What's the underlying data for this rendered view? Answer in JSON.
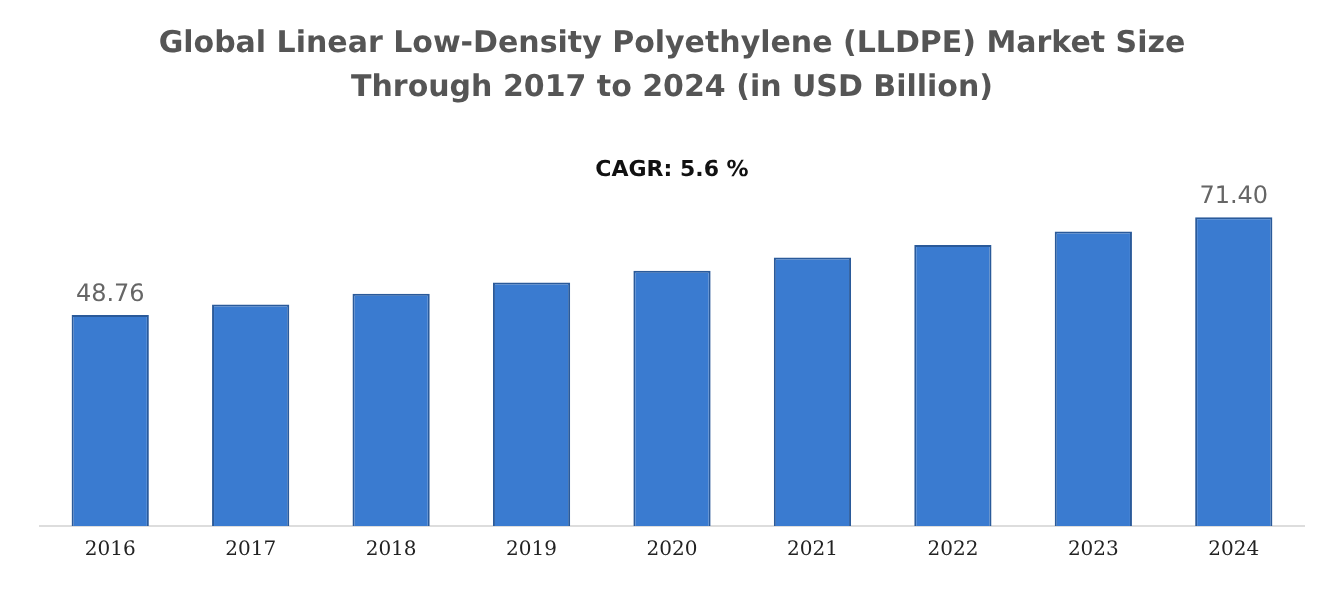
{
  "chart_data": {
    "type": "bar",
    "title": "Global Linear Low-Density Polyethylene (LLDPE) Market Size\nThrough 2017 to 2024 (in USD Billion)",
    "annotations": [
      "CAGR: 5.6 %"
    ],
    "categories": [
      "2016",
      "2017",
      "2018",
      "2019",
      "2020",
      "2021",
      "2022",
      "2023",
      "2024"
    ],
    "values": [
      48.76,
      51.2,
      53.7,
      56.3,
      59.0,
      62.1,
      65.0,
      68.1,
      71.4
    ],
    "value_labels": [
      "48.76",
      null,
      null,
      null,
      null,
      null,
      null,
      null,
      "71.40"
    ],
    "color": "#3a7bd0",
    "grid": false,
    "legend": false
  }
}
